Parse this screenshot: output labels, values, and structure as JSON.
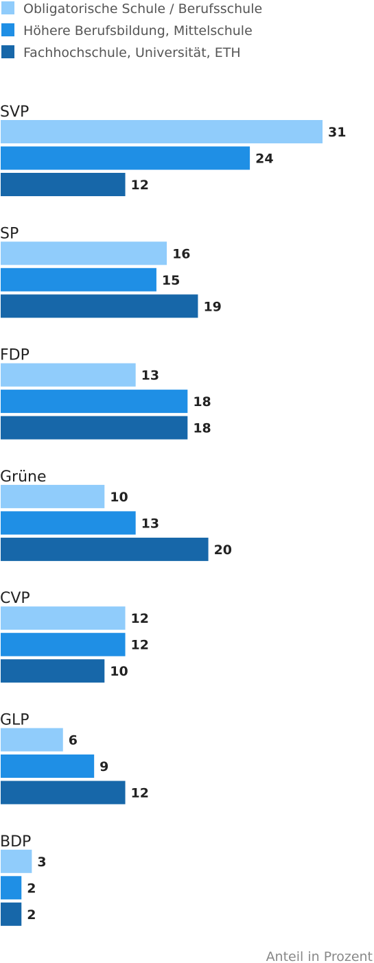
{
  "chart_data": {
    "type": "bar",
    "orientation": "horizontal",
    "categories": [
      "SVP",
      "SP",
      "FDP",
      "Grüne",
      "CVP",
      "GLP",
      "BDP"
    ],
    "series": [
      {
        "name": "Obligatorische Schule / Berufsschule",
        "color": "#90ccfb",
        "values": [
          31,
          16,
          13,
          10,
          12,
          6,
          3
        ]
      },
      {
        "name": "Höhere Berufsbildung, Mittelschule",
        "color": "#1f8fe5",
        "values": [
          24,
          15,
          18,
          13,
          12,
          9,
          2
        ]
      },
      {
        "name": "Fachhochschule, Universität, ETH",
        "color": "#1767a9",
        "values": [
          12,
          19,
          18,
          20,
          10,
          12,
          2
        ]
      }
    ],
    "xlim": [
      0,
      31
    ],
    "legend_position": "top-left",
    "grid": false,
    "note": "Anteil in Prozent"
  }
}
